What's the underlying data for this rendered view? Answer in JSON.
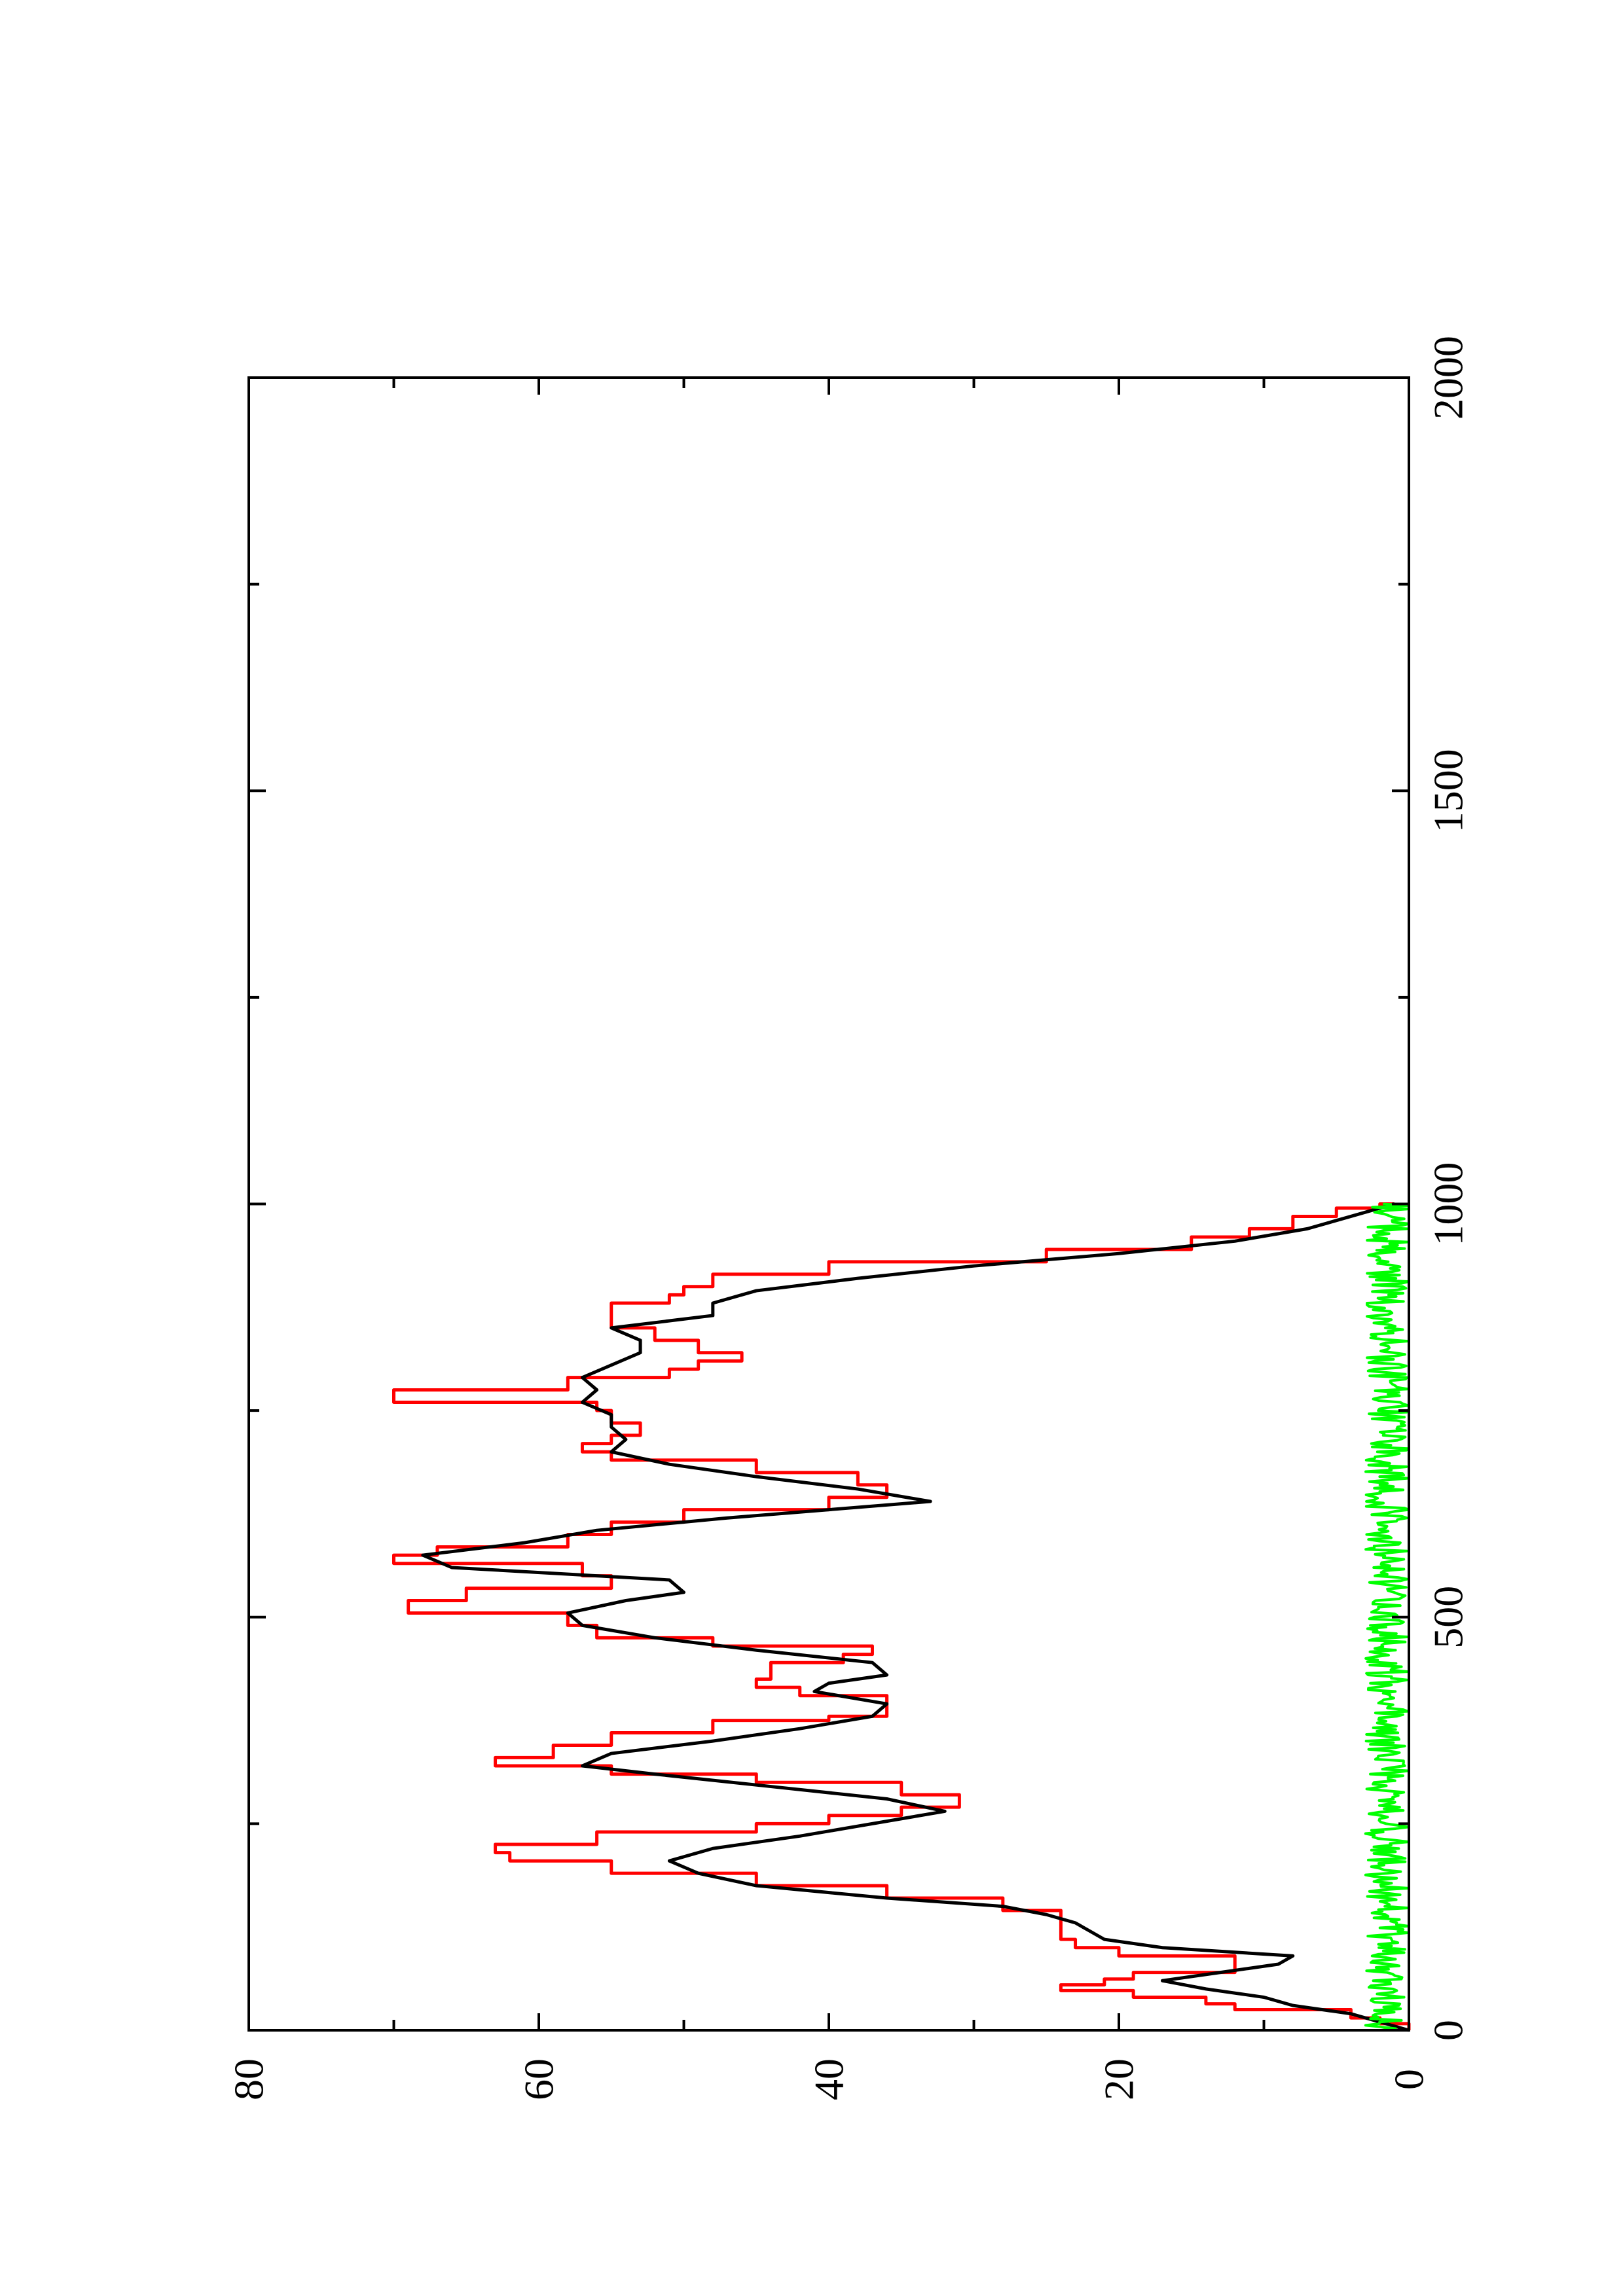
{
  "chart_data": {
    "type": "line",
    "orientation": "rotated 90 degrees (x axis runs top to bottom on the right, y axis left to right at the bottom)",
    "title": "",
    "xlabel": "",
    "ylabel": "",
    "xlim": [
      0,
      2000
    ],
    "ylim": [
      0,
      80
    ],
    "x_ticks": [
      "0",
      "500",
      "1000",
      "1500",
      "2000"
    ],
    "y_ticks": [
      "0",
      "20",
      "40",
      "60",
      "80"
    ],
    "grid": false,
    "legend": "none",
    "series": [
      {
        "color": "#ff0000",
        "style": "step",
        "points": [
          [
            0,
            0
          ],
          [
            8,
            2
          ],
          [
            15,
            4
          ],
          [
            25,
            12
          ],
          [
            32,
            14
          ],
          [
            40,
            19
          ],
          [
            48,
            24
          ],
          [
            55,
            21
          ],
          [
            62,
            19
          ],
          [
            70,
            12
          ],
          [
            85,
            12
          ],
          [
            90,
            20
          ],
          [
            100,
            23
          ],
          [
            110,
            24
          ],
          [
            120,
            24
          ],
          [
            135,
            24
          ],
          [
            145,
            28
          ],
          [
            160,
            36
          ],
          [
            175,
            45
          ],
          [
            190,
            55
          ],
          [
            205,
            62
          ],
          [
            215,
            63
          ],
          [
            225,
            56
          ],
          [
            240,
            45
          ],
          [
            250,
            40
          ],
          [
            260,
            35
          ],
          [
            270,
            31
          ],
          [
            285,
            35
          ],
          [
            300,
            45
          ],
          [
            310,
            55
          ],
          [
            320,
            63
          ],
          [
            330,
            59
          ],
          [
            345,
            55
          ],
          [
            360,
            48
          ],
          [
            375,
            40
          ],
          [
            380,
            36
          ],
          [
            395,
            36
          ],
          [
            405,
            42
          ],
          [
            415,
            45
          ],
          [
            425,
            44
          ],
          [
            435,
            44
          ],
          [
            445,
            39
          ],
          [
            455,
            37
          ],
          [
            465,
            48
          ],
          [
            475,
            56
          ],
          [
            490,
            58
          ],
          [
            505,
            69
          ],
          [
            520,
            65
          ],
          [
            535,
            55
          ],
          [
            550,
            57
          ],
          [
            565,
            70
          ],
          [
            575,
            67
          ],
          [
            585,
            58
          ],
          [
            600,
            55
          ],
          [
            615,
            50
          ],
          [
            630,
            40
          ],
          [
            645,
            36
          ],
          [
            660,
            38
          ],
          [
            675,
            45
          ],
          [
            690,
            55
          ],
          [
            700,
            57
          ],
          [
            710,
            55
          ],
          [
            720,
            53
          ],
          [
            735,
            55
          ],
          [
            750,
            56
          ],
          [
            760,
            70
          ],
          [
            775,
            58
          ],
          [
            790,
            51
          ],
          [
            800,
            49
          ],
          [
            810,
            46
          ],
          [
            820,
            49
          ],
          [
            835,
            52
          ],
          [
            850,
            55
          ],
          [
            865,
            55
          ],
          [
            880,
            51
          ],
          [
            890,
            50
          ],
          [
            900,
            48
          ],
          [
            915,
            40
          ],
          [
            930,
            25
          ],
          [
            945,
            15
          ],
          [
            960,
            11
          ],
          [
            970,
            8
          ],
          [
            985,
            5
          ],
          [
            995,
            2
          ],
          [
            1000,
            1
          ]
        ]
      },
      {
        "color": "#000000",
        "style": "line",
        "points": [
          [
            0,
            0
          ],
          [
            10,
            2
          ],
          [
            20,
            4
          ],
          [
            30,
            8
          ],
          [
            40,
            10
          ],
          [
            50,
            14
          ],
          [
            60,
            17
          ],
          [
            70,
            13
          ],
          [
            80,
            9
          ],
          [
            90,
            8
          ],
          [
            100,
            17
          ],
          [
            110,
            21
          ],
          [
            120,
            22
          ],
          [
            130,
            23
          ],
          [
            140,
            25
          ],
          [
            150,
            28
          ],
          [
            160,
            36
          ],
          [
            175,
            45
          ],
          [
            190,
            49
          ],
          [
            205,
            51
          ],
          [
            220,
            48
          ],
          [
            235,
            42
          ],
          [
            250,
            37
          ],
          [
            265,
            32
          ],
          [
            280,
            36
          ],
          [
            295,
            44
          ],
          [
            310,
            52
          ],
          [
            320,
            57
          ],
          [
            335,
            55
          ],
          [
            350,
            48
          ],
          [
            365,
            42
          ],
          [
            380,
            37
          ],
          [
            395,
            36
          ],
          [
            410,
            41
          ],
          [
            420,
            40
          ],
          [
            430,
            36
          ],
          [
            445,
            37
          ],
          [
            460,
            45
          ],
          [
            475,
            52
          ],
          [
            490,
            57
          ],
          [
            505,
            58
          ],
          [
            520,
            54
          ],
          [
            530,
            50
          ],
          [
            545,
            51
          ],
          [
            560,
            66
          ],
          [
            575,
            68
          ],
          [
            590,
            61
          ],
          [
            605,
            56
          ],
          [
            620,
            47
          ],
          [
            640,
            33
          ],
          [
            655,
            38
          ],
          [
            670,
            45
          ],
          [
            685,
            51
          ],
          [
            700,
            55
          ],
          [
            715,
            54
          ],
          [
            730,
            55
          ],
          [
            745,
            55
          ],
          [
            760,
            57
          ],
          [
            775,
            56
          ],
          [
            790,
            57
          ],
          [
            805,
            55
          ],
          [
            820,
            53
          ],
          [
            835,
            53
          ],
          [
            850,
            55
          ],
          [
            865,
            48
          ],
          [
            880,
            48
          ],
          [
            895,
            45
          ],
          [
            910,
            38
          ],
          [
            925,
            30
          ],
          [
            940,
            20
          ],
          [
            955,
            12
          ],
          [
            970,
            7
          ],
          [
            985,
            4
          ],
          [
            1000,
            1
          ]
        ]
      },
      {
        "color": "#00ff00",
        "style": "noisy line",
        "amplitude": [
          0,
          3
        ],
        "x_range": [
          0,
          1000
        ]
      }
    ]
  }
}
